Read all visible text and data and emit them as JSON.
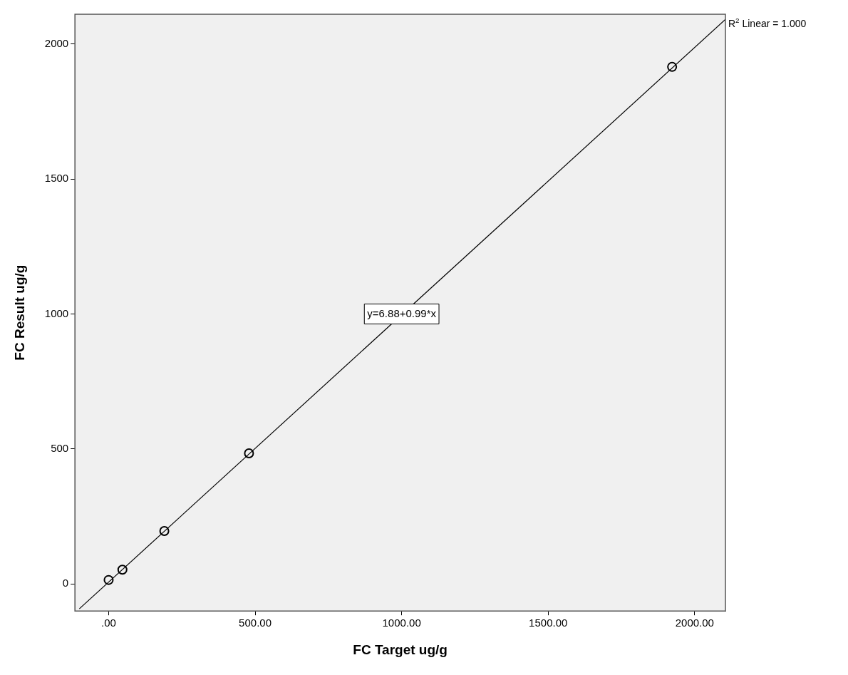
{
  "chart_data": {
    "type": "scatter",
    "xlabel": "FC Target ug/g",
    "ylabel": "FC Result ug/g",
    "xlim": [
      -115,
      2105
    ],
    "ylim": [
      -100,
      2110
    ],
    "xticks": [
      {
        "value": 0,
        "label": ".00"
      },
      {
        "value": 500,
        "label": "500.00"
      },
      {
        "value": 1000,
        "label": "1000.00"
      },
      {
        "value": 1500,
        "label": "1500.00"
      },
      {
        "value": 2000,
        "label": "2000.00"
      }
    ],
    "yticks": [
      0,
      500,
      1000,
      1500,
      2000
    ],
    "series": [
      {
        "color": "#000000",
        "marker": "circle",
        "x": [
          0,
          47,
          190,
          479,
          1923
        ],
        "values": [
          15,
          53,
          196,
          484,
          1915
        ]
      },
      {
        "type": "line",
        "color": "#000000",
        "marker": "none",
        "x": [
          -100,
          2105
        ],
        "values": [
          -92,
          2091
        ]
      }
    ],
    "annotations": [
      "R$^{2}$ Linear = 1.000",
      {
        "text": "y=6.88+0.99*x",
        "x": 1000,
        "y": 1000
      }
    ]
  }
}
